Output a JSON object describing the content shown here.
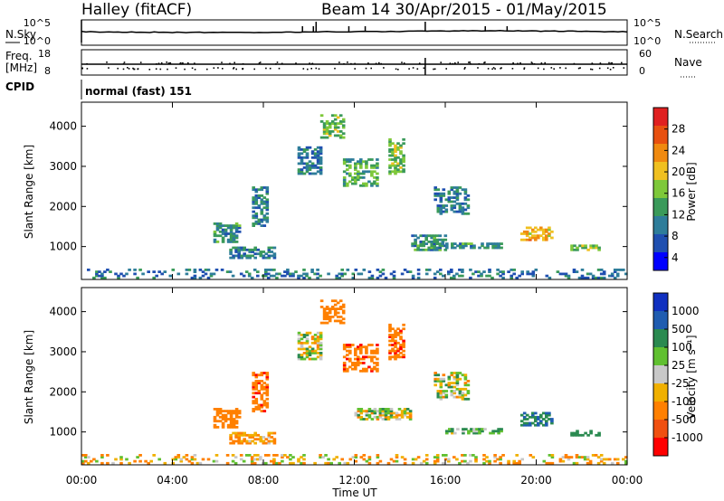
{
  "header": {
    "station": "Halley (fitACF)",
    "beam_date": "Beam 14  30/Apr/2015 - 01/May/2015"
  },
  "status_panels": {
    "nsky_label": "N.Sky",
    "nsky_ticks": [
      "10^5",
      "10^0"
    ],
    "nsearch_label": "N.Search",
    "nsearch_ticks": [
      "10^5",
      "10^0"
    ],
    "freq_label": "Freq.",
    "freq_unit": "[MHz]",
    "freq_ticks": [
      "18",
      "8"
    ],
    "nave_label": "Nave",
    "nave_ticks": [
      "60",
      "0"
    ],
    "cpid_label": "CPID",
    "cpid_value": "normal (fast) 151"
  },
  "colors": {
    "power_scale": [
      "#0000ff",
      "#1f4fb0",
      "#2e7d9a",
      "#3a9a5a",
      "#7ec83a",
      "#f0c020",
      "#f08a10",
      "#e85010",
      "#e02020"
    ],
    "velocity_scale": [
      "#ff0000",
      "#f05010",
      "#ff8000",
      "#f0b000",
      "#c8c8c8",
      "#60c030",
      "#2a8a50",
      "#1f5cb0",
      "#1030c0"
    ]
  },
  "chart_data": [
    {
      "type": "heatmap",
      "name": "power",
      "ylabel": "Slant Range [km]",
      "xlabel": "Time UT",
      "yticks": [
        1000,
        2000,
        3000,
        4000
      ],
      "ylim": [
        180,
        4600
      ],
      "xlim": [
        0,
        24
      ],
      "xticks": [
        "00:00",
        "04:00",
        "08:00",
        "12:00",
        "16:00",
        "20:00",
        "00:00"
      ],
      "colorbar": {
        "label": "Power [dB]",
        "ticks": [
          "28",
          "24",
          "20",
          "16",
          "12",
          "8",
          "4"
        ],
        "range": [
          0,
          30
        ]
      },
      "regions": [
        {
          "t0": 5.8,
          "t1": 7.0,
          "r0": 1100,
          "r1": 1600,
          "value": 10
        },
        {
          "t0": 6.5,
          "t1": 8.5,
          "r0": 700,
          "r1": 1000,
          "value": 8
        },
        {
          "t0": 7.5,
          "t1": 8.2,
          "r0": 1500,
          "r1": 2500,
          "value": 9
        },
        {
          "t0": 9.5,
          "t1": 10.5,
          "r0": 2800,
          "r1": 3500,
          "value": 8
        },
        {
          "t0": 10.5,
          "t1": 11.5,
          "r0": 3700,
          "r1": 4300,
          "value": 14
        },
        {
          "t0": 11.5,
          "t1": 13.0,
          "r0": 2500,
          "r1": 3200,
          "value": 12
        },
        {
          "t0": 13.5,
          "t1": 14.2,
          "r0": 2800,
          "r1": 3700,
          "value": 14
        },
        {
          "t0": 15.5,
          "t1": 17.0,
          "r0": 1800,
          "r1": 2500,
          "value": 8
        },
        {
          "t0": 14.5,
          "t1": 16.0,
          "r0": 900,
          "r1": 1300,
          "value": 10
        },
        {
          "t0": 16.0,
          "t1": 18.5,
          "r0": 950,
          "r1": 1100,
          "value": 10
        },
        {
          "t0": 19.3,
          "t1": 20.7,
          "r0": 1150,
          "r1": 1500,
          "value": 20
        },
        {
          "t0": 21.5,
          "t1": 22.8,
          "r0": 900,
          "r1": 1050,
          "value": 14
        },
        {
          "t0": 0.0,
          "t1": 24.0,
          "r0": 200,
          "r1": 450,
          "value": 8
        }
      ]
    },
    {
      "type": "heatmap",
      "name": "velocity",
      "ylabel": "Slant Range [km]",
      "xlabel": "Time UT",
      "yticks": [
        1000,
        2000,
        3000,
        4000
      ],
      "ylim": [
        180,
        4600
      ],
      "xlim": [
        0,
        24
      ],
      "xticks": [
        "00:00",
        "04:00",
        "08:00",
        "12:00",
        "16:00",
        "20:00",
        "00:00"
      ],
      "colorbar": {
        "label": "Velocity [m s⁻¹]",
        "ticks": [
          "1000",
          "500",
          "100",
          "25",
          "-25",
          "-100",
          "-500",
          "-1000"
        ],
        "range": [
          -1000,
          1000
        ]
      },
      "regions": [
        {
          "t0": 5.8,
          "t1": 7.0,
          "r0": 1100,
          "r1": 1600,
          "value": -300
        },
        {
          "t0": 6.5,
          "t1": 8.5,
          "r0": 700,
          "r1": 1000,
          "value": -150
        },
        {
          "t0": 7.5,
          "t1": 8.2,
          "r0": 1500,
          "r1": 2500,
          "value": -400
        },
        {
          "t0": 9.5,
          "t1": 10.5,
          "r0": 2800,
          "r1": 3500,
          "value": 0
        },
        {
          "t0": 10.5,
          "t1": 11.5,
          "r0": 3700,
          "r1": 4300,
          "value": -300
        },
        {
          "t0": 11.5,
          "t1": 13.0,
          "r0": 2500,
          "r1": 3200,
          "value": -400
        },
        {
          "t0": 13.5,
          "t1": 14.2,
          "r0": 2800,
          "r1": 3700,
          "value": -400
        },
        {
          "t0": 15.5,
          "t1": 17.0,
          "r0": 1800,
          "r1": 2500,
          "value": 0
        },
        {
          "t0": 12.0,
          "t1": 14.5,
          "r0": 1300,
          "r1": 1600,
          "value": 0
        },
        {
          "t0": 16.0,
          "t1": 18.5,
          "r0": 950,
          "r1": 1100,
          "value": 100
        },
        {
          "t0": 19.3,
          "t1": 20.7,
          "r0": 1150,
          "r1": 1500,
          "value": 500
        },
        {
          "t0": 21.5,
          "t1": 22.8,
          "r0": 900,
          "r1": 1050,
          "value": 200
        },
        {
          "t0": 0.0,
          "t1": 24.0,
          "r0": 200,
          "r1": 450,
          "value": -60
        }
      ]
    }
  ]
}
